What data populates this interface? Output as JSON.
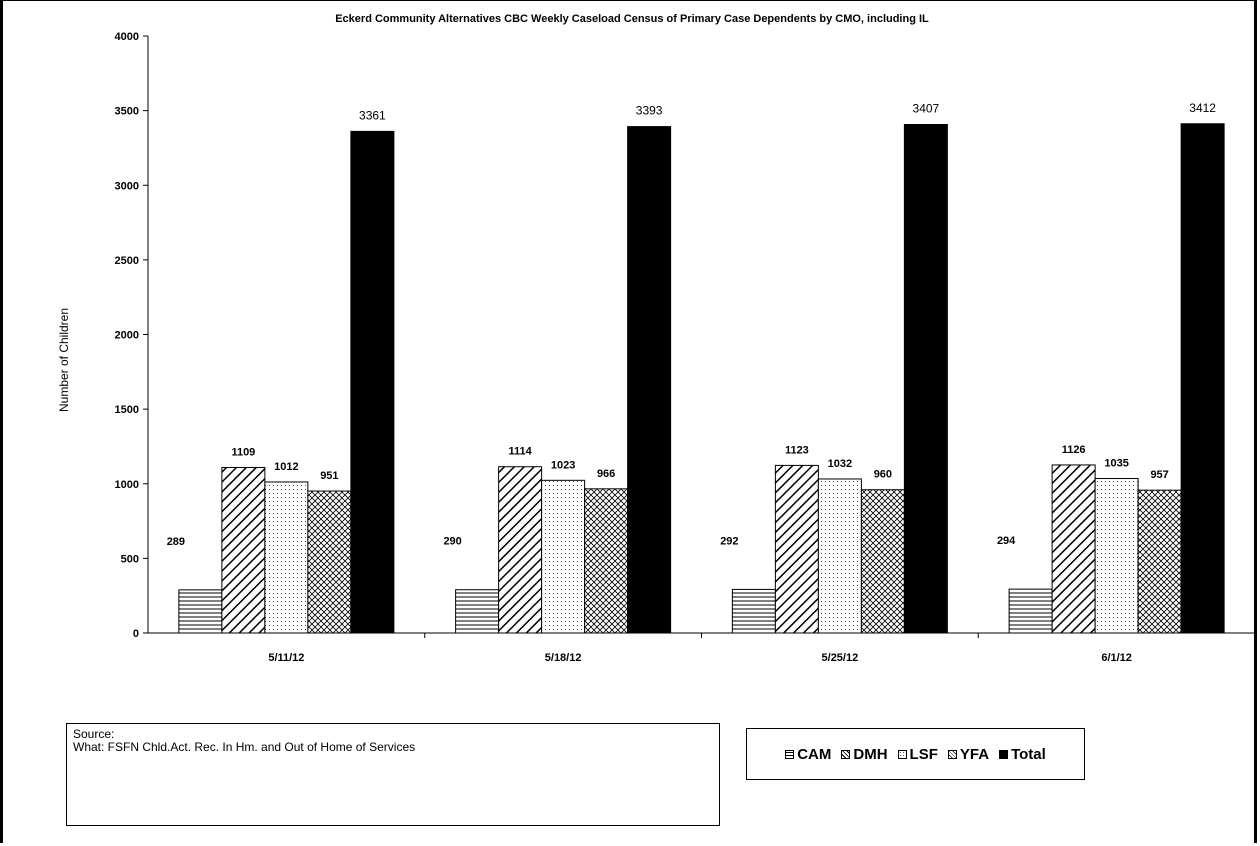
{
  "chart_data": {
    "type": "bar",
    "title": "Eckerd Community Alternatives CBC  Weekly Caseload Census of Primary Case Dependents  by CMO, including IL",
    "ylabel": "Number of Children",
    "xlabel": "",
    "ylim": [
      0,
      4000
    ],
    "yticks": [
      0,
      500,
      1000,
      1500,
      2000,
      2500,
      3000,
      3500,
      4000
    ],
    "grid": false,
    "legend_position": "bottom-right",
    "categories": [
      "5/11/12",
      "5/18/12",
      "5/25/12",
      "6/1/12"
    ],
    "series": [
      {
        "name": "CAM",
        "values": [
          289,
          290,
          292,
          294
        ],
        "pattern": "horizontal-lines"
      },
      {
        "name": "DMH",
        "values": [
          1109,
          1114,
          1123,
          1126
        ],
        "pattern": "diagonal-lines"
      },
      {
        "name": "LSF",
        "values": [
          1012,
          1023,
          1032,
          1035
        ],
        "pattern": "dots"
      },
      {
        "name": "YFA",
        "values": [
          951,
          966,
          960,
          957
        ],
        "pattern": "crosshatch"
      },
      {
        "name": "Total",
        "values": [
          3361,
          3393,
          3407,
          3412
        ],
        "pattern": "solid"
      }
    ]
  },
  "source_box": {
    "line1": "Source:",
    "line2": "What: FSFN Chld.Act. Rec. In Hm. and Out of Home of Services"
  },
  "colors": {
    "bar_fill": "#ffffff",
    "bar_stroke": "#000000",
    "total": "#000000"
  }
}
